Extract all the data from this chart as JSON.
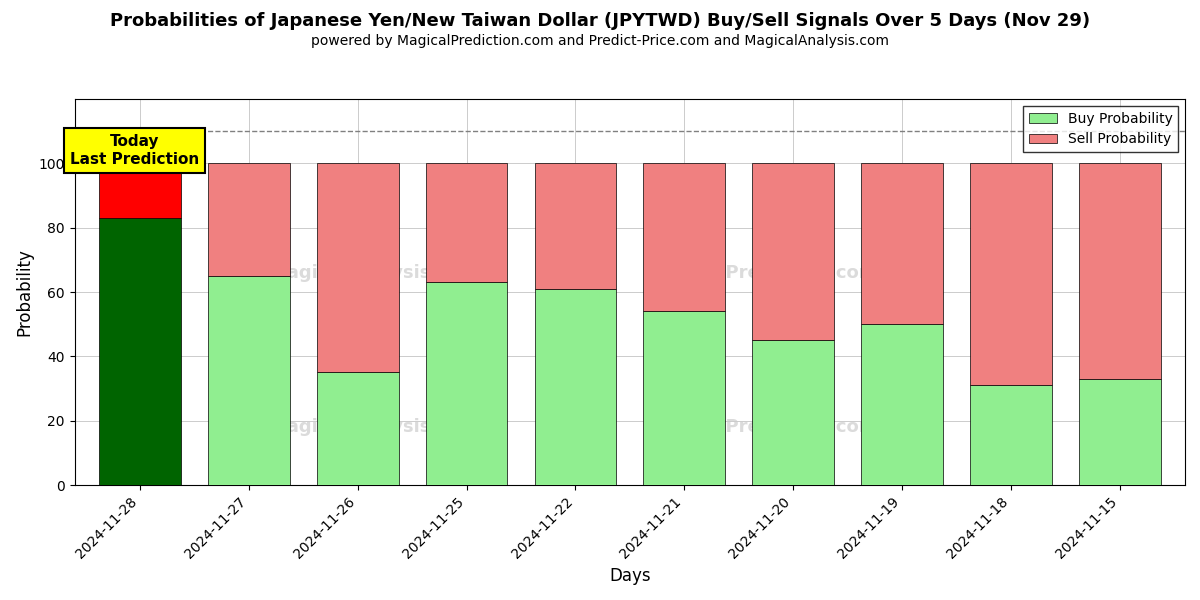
{
  "title": "Probabilities of Japanese Yen/New Taiwan Dollar (JPYTWD) Buy/Sell Signals Over 5 Days (Nov 29)",
  "subtitle": "powered by MagicalPrediction.com and Predict-Price.com and MagicalAnalysis.com",
  "xlabel": "Days",
  "ylabel": "Probability",
  "dates": [
    "2024-11-28",
    "2024-11-27",
    "2024-11-26",
    "2024-11-25",
    "2024-11-22",
    "2024-11-21",
    "2024-11-20",
    "2024-11-19",
    "2024-11-18",
    "2024-11-15"
  ],
  "buy_values": [
    83,
    65,
    35,
    63,
    61,
    54,
    45,
    50,
    31,
    33
  ],
  "sell_values": [
    17,
    35,
    65,
    37,
    39,
    46,
    55,
    50,
    69,
    67
  ],
  "buy_colors": [
    "#006400",
    "#90EE90",
    "#90EE90",
    "#90EE90",
    "#90EE90",
    "#90EE90",
    "#90EE90",
    "#90EE90",
    "#90EE90",
    "#90EE90"
  ],
  "sell_colors": [
    "#FF0000",
    "#F08080",
    "#F08080",
    "#F08080",
    "#F08080",
    "#F08080",
    "#F08080",
    "#F08080",
    "#F08080",
    "#F08080"
  ],
  "today_box_color": "#FFFF00",
  "today_text": "Today\nLast Prediction",
  "legend_buy_color": "#90EE90",
  "legend_sell_color": "#F08080",
  "legend_buy_label": "Buy Probability",
  "legend_sell_label": "Sell Probability",
  "ylim": [
    0,
    120
  ],
  "dashed_line_y": 110,
  "bar_width": 0.75,
  "fig_width": 12.0,
  "fig_height": 6.0,
  "title_fontsize": 13,
  "subtitle_fontsize": 10,
  "axis_label_fontsize": 12,
  "tick_fontsize": 10,
  "background_color": "#ffffff",
  "grid_color": "#cccccc"
}
